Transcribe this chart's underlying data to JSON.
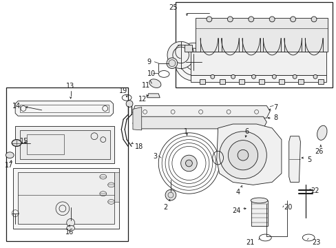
{
  "bg_color": "#ffffff",
  "line_color": "#1a1a1a",
  "fig_width": 4.89,
  "fig_height": 3.6,
  "dpi": 100,
  "label_fs": 7.0,
  "lw_thin": 0.6,
  "lw_med": 0.9
}
